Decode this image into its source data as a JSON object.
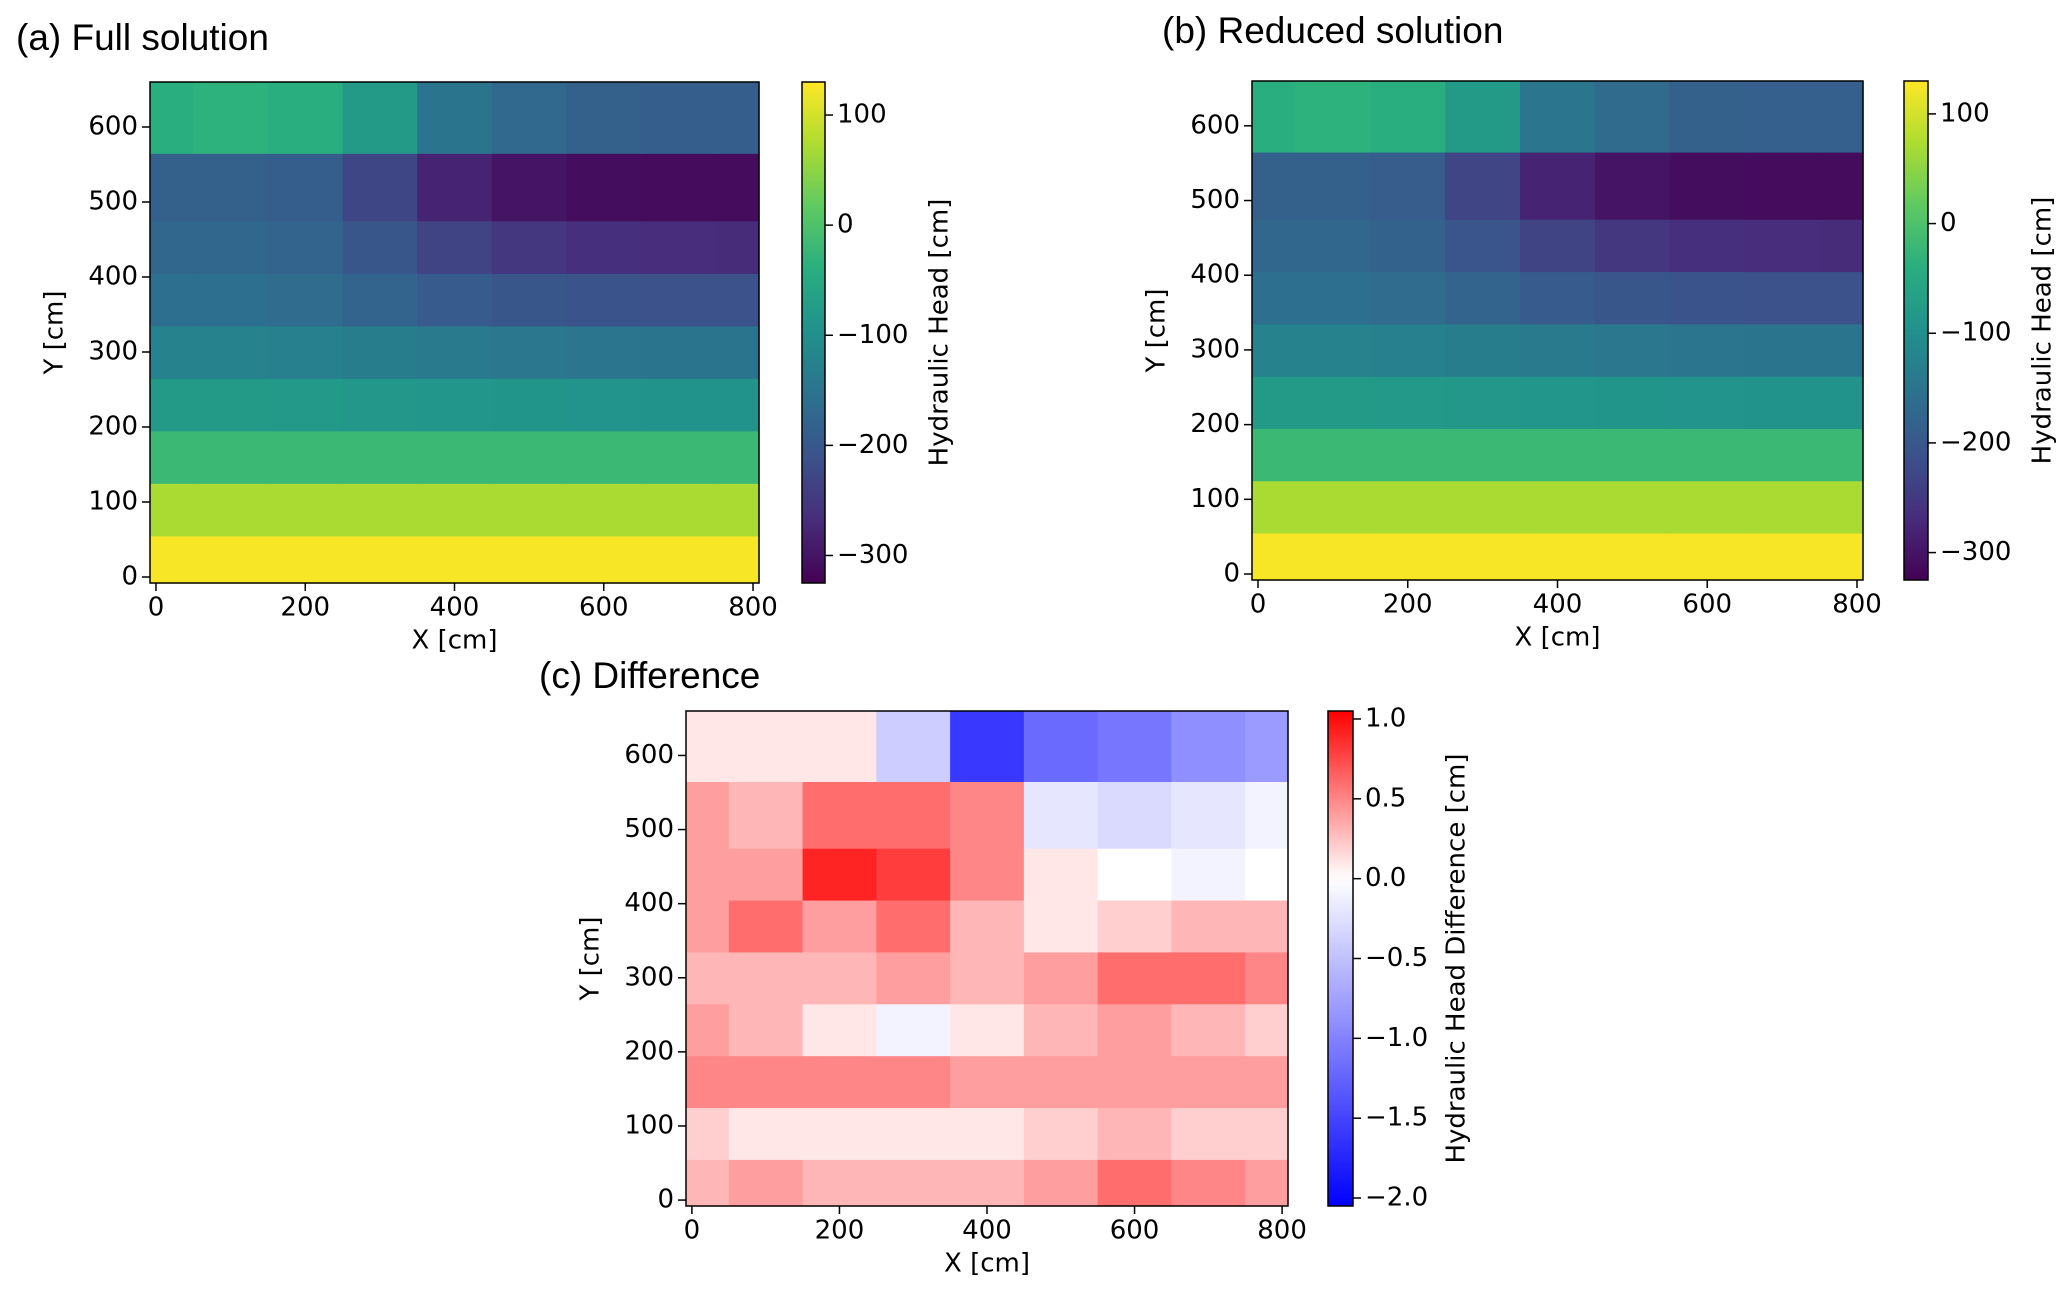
{
  "chart_data": [
    {
      "type": "heatmap",
      "title": "(a) Full solution",
      "xlabel": "X [cm]",
      "ylabel": "Y [cm]",
      "x": [
        0,
        100,
        200,
        300,
        400,
        500,
        600,
        700,
        800
      ],
      "y": [
        20,
        90,
        160,
        230,
        300,
        370,
        440,
        510,
        620
      ],
      "z": [
        [
          125,
          125,
          125,
          125,
          125,
          125,
          125,
          125,
          125
        ],
        [
          70,
          70,
          70,
          70,
          70,
          70,
          70,
          70,
          70
        ],
        [
          -20,
          -20,
          -20,
          -20,
          -20,
          -20,
          -20,
          -20,
          -20
        ],
        [
          -80,
          -80,
          -82,
          -85,
          -88,
          -90,
          -92,
          -93,
          -94
        ],
        [
          -125,
          -125,
          -128,
          -135,
          -140,
          -145,
          -148,
          -150,
          -150
        ],
        [
          -160,
          -160,
          -165,
          -180,
          -195,
          -205,
          -210,
          -212,
          -212
        ],
        [
          -175,
          -175,
          -180,
          -205,
          -235,
          -255,
          -265,
          -268,
          -270
        ],
        [
          -185,
          -185,
          -190,
          -230,
          -280,
          -300,
          -310,
          -312,
          -312
        ],
        [
          -40,
          -35,
          -40,
          -80,
          -150,
          -170,
          -185,
          -190,
          -190
        ]
      ],
      "xlim": [
        -8,
        808
      ],
      "ylim": [
        -8,
        660
      ],
      "xticks": [
        0,
        200,
        400,
        600,
        800
      ],
      "yticks": [
        0,
        100,
        200,
        300,
        400,
        500,
        600
      ],
      "colormap": "viridis",
      "colorbar_label": "Hydraulic Head [cm]",
      "clim": [
        -325,
        130
      ],
      "cticks": [
        {
          "value": -300,
          "label": "−300"
        },
        {
          "value": -200,
          "label": "−200"
        },
        {
          "value": -100,
          "label": "−100"
        },
        0,
        100
      ]
    },
    {
      "type": "heatmap",
      "title": "(b) Reduced solution",
      "xlabel": "X [cm]",
      "ylabel": "Y [cm]",
      "x": [
        0,
        100,
        200,
        300,
        400,
        500,
        600,
        700,
        800
      ],
      "y": [
        20,
        90,
        160,
        230,
        300,
        370,
        440,
        510,
        620
      ],
      "z": [
        [
          125,
          125,
          125,
          125,
          125,
          125,
          125,
          125,
          125
        ],
        [
          70,
          70,
          70,
          70,
          70,
          70,
          70,
          70,
          70
        ],
        [
          -20,
          -20,
          -20,
          -20,
          -20,
          -20,
          -20,
          -20,
          -20
        ],
        [
          -80,
          -80,
          -82,
          -85,
          -88,
          -90,
          -92,
          -93,
          -94
        ],
        [
          -125,
          -125,
          -128,
          -135,
          -140,
          -145,
          -148,
          -150,
          -150
        ],
        [
          -160,
          -160,
          -165,
          -180,
          -195,
          -205,
          -210,
          -212,
          -212
        ],
        [
          -175,
          -175,
          -181,
          -206,
          -235,
          -255,
          -265,
          -268,
          -270
        ],
        [
          -185,
          -185,
          -191,
          -231,
          -280,
          -300,
          -310,
          -312,
          -312
        ],
        [
          -40,
          -35,
          -40,
          -80,
          -148,
          -169,
          -184,
          -189,
          -189
        ]
      ],
      "xlim": [
        -8,
        808
      ],
      "ylim": [
        -8,
        660
      ],
      "xticks": [
        0,
        200,
        400,
        600,
        800
      ],
      "yticks": [
        0,
        100,
        200,
        300,
        400,
        500,
        600
      ],
      "colormap": "viridis",
      "colorbar_label": "Hydraulic Head [cm]",
      "clim": [
        -325,
        130
      ],
      "cticks": [
        {
          "value": -300,
          "label": "−300"
        },
        {
          "value": -200,
          "label": "−200"
        },
        {
          "value": -100,
          "label": "−100"
        },
        0,
        100
      ]
    },
    {
      "type": "heatmap",
      "title": "(c) Difference",
      "xlabel": "X [cm]",
      "ylabel": "Y [cm]",
      "x": [
        0,
        100,
        200,
        300,
        400,
        500,
        600,
        700,
        800
      ],
      "y": [
        20,
        90,
        160,
        230,
        300,
        370,
        440,
        510,
        620
      ],
      "z": [
        [
          0.3,
          0.4,
          0.3,
          0.3,
          0.3,
          0.4,
          0.6,
          0.5,
          0.4
        ],
        [
          0.2,
          0.1,
          0.1,
          0.1,
          0.1,
          0.2,
          0.3,
          0.2,
          0.2
        ],
        [
          0.5,
          0.5,
          0.5,
          0.5,
          0.4,
          0.4,
          0.4,
          0.4,
          0.4
        ],
        [
          0.4,
          0.3,
          0.1,
          -0.1,
          0.1,
          0.3,
          0.4,
          0.3,
          0.2
        ],
        [
          0.3,
          0.3,
          0.3,
          0.4,
          0.3,
          0.4,
          0.6,
          0.6,
          0.5
        ],
        [
          0.4,
          0.6,
          0.4,
          0.6,
          0.3,
          0.1,
          0.2,
          0.3,
          0.3
        ],
        [
          0.4,
          0.4,
          0.9,
          0.8,
          0.5,
          0.1,
          0.0,
          -0.1,
          0.0
        ],
        [
          0.4,
          0.3,
          0.6,
          0.6,
          0.5,
          -0.2,
          -0.3,
          -0.2,
          -0.1
        ],
        [
          0.1,
          0.1,
          0.1,
          -0.4,
          -1.6,
          -1.2,
          -1.1,
          -0.9,
          -0.8
        ]
      ],
      "xlim": [
        -8,
        808
      ],
      "ylim": [
        -8,
        660
      ],
      "xticks": [
        0,
        200,
        400,
        600,
        800
      ],
      "yticks": [
        0,
        100,
        200,
        300,
        400,
        500,
        600
      ],
      "colormap": "bwr",
      "diverging_center": 0,
      "colorbar_label": "Hydraulic Head Difference [cm]",
      "clim": [
        -2.05,
        1.05
      ],
      "cticks": [
        {
          "value": -2,
          "label": "−2.0"
        },
        {
          "value": -1.5,
          "label": "−1.5"
        },
        {
          "value": -1,
          "label": "−1.0"
        },
        {
          "value": -0.5,
          "label": "−0.5"
        },
        {
          "value": 0,
          "label": "0.0"
        },
        {
          "value": 0.5,
          "label": "0.5"
        },
        {
          "value": 1,
          "label": "1.0"
        }
      ]
    }
  ]
}
